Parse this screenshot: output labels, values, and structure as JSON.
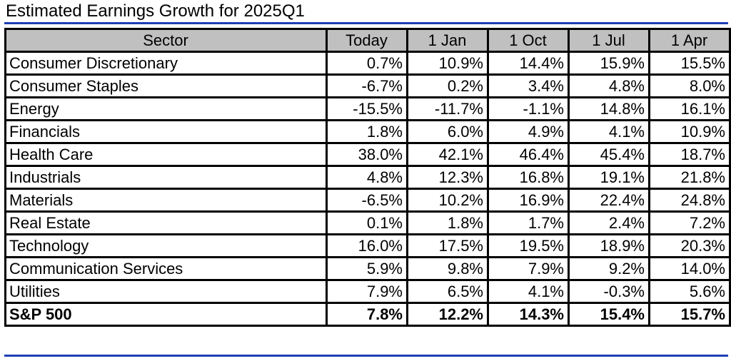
{
  "chart_data": {
    "type": "table",
    "title": "Estimated Earnings Growth for 2025Q1",
    "columns": [
      "Sector",
      "Today",
      "1 Jan",
      "1 Oct",
      "1 Jul",
      "1 Apr"
    ],
    "rows": [
      {
        "sector": "Consumer Discretionary",
        "values": [
          "0.7%",
          "10.9%",
          "14.4%",
          "15.9%",
          "15.5%"
        ]
      },
      {
        "sector": "Consumer Staples",
        "values": [
          "-6.7%",
          "0.2%",
          "3.4%",
          "4.8%",
          "8.0%"
        ]
      },
      {
        "sector": "Energy",
        "values": [
          "-15.5%",
          "-11.7%",
          "-1.1%",
          "14.8%",
          "16.1%"
        ]
      },
      {
        "sector": "Financials",
        "values": [
          "1.8%",
          "6.0%",
          "4.9%",
          "4.1%",
          "10.9%"
        ]
      },
      {
        "sector": "Health Care",
        "values": [
          "38.0%",
          "42.1%",
          "46.4%",
          "45.4%",
          "18.7%"
        ]
      },
      {
        "sector": "Industrials",
        "values": [
          "4.8%",
          "12.3%",
          "16.8%",
          "19.1%",
          "21.8%"
        ]
      },
      {
        "sector": "Materials",
        "values": [
          "-6.5%",
          "10.2%",
          "16.9%",
          "22.4%",
          "24.8%"
        ]
      },
      {
        "sector": "Real Estate",
        "values": [
          "0.1%",
          "1.8%",
          "1.7%",
          "2.4%",
          "7.2%"
        ]
      },
      {
        "sector": "Technology",
        "values": [
          "16.0%",
          "17.5%",
          "19.5%",
          "18.9%",
          "20.3%"
        ]
      },
      {
        "sector": "Communication Services",
        "values": [
          "5.9%",
          "9.8%",
          "7.9%",
          "9.2%",
          "14.0%"
        ]
      },
      {
        "sector": "Utilities",
        "values": [
          "7.9%",
          "6.5%",
          "4.1%",
          "-0.3%",
          "5.6%"
        ]
      },
      {
        "sector": "S&P 500",
        "values": [
          "7.8%",
          "12.2%",
          "14.3%",
          "15.4%",
          "15.7%"
        ],
        "total": true
      }
    ]
  },
  "colors": {
    "header_fill": "#c0c0c0",
    "rule": "#1c3fb5",
    "grid": "#000000"
  }
}
